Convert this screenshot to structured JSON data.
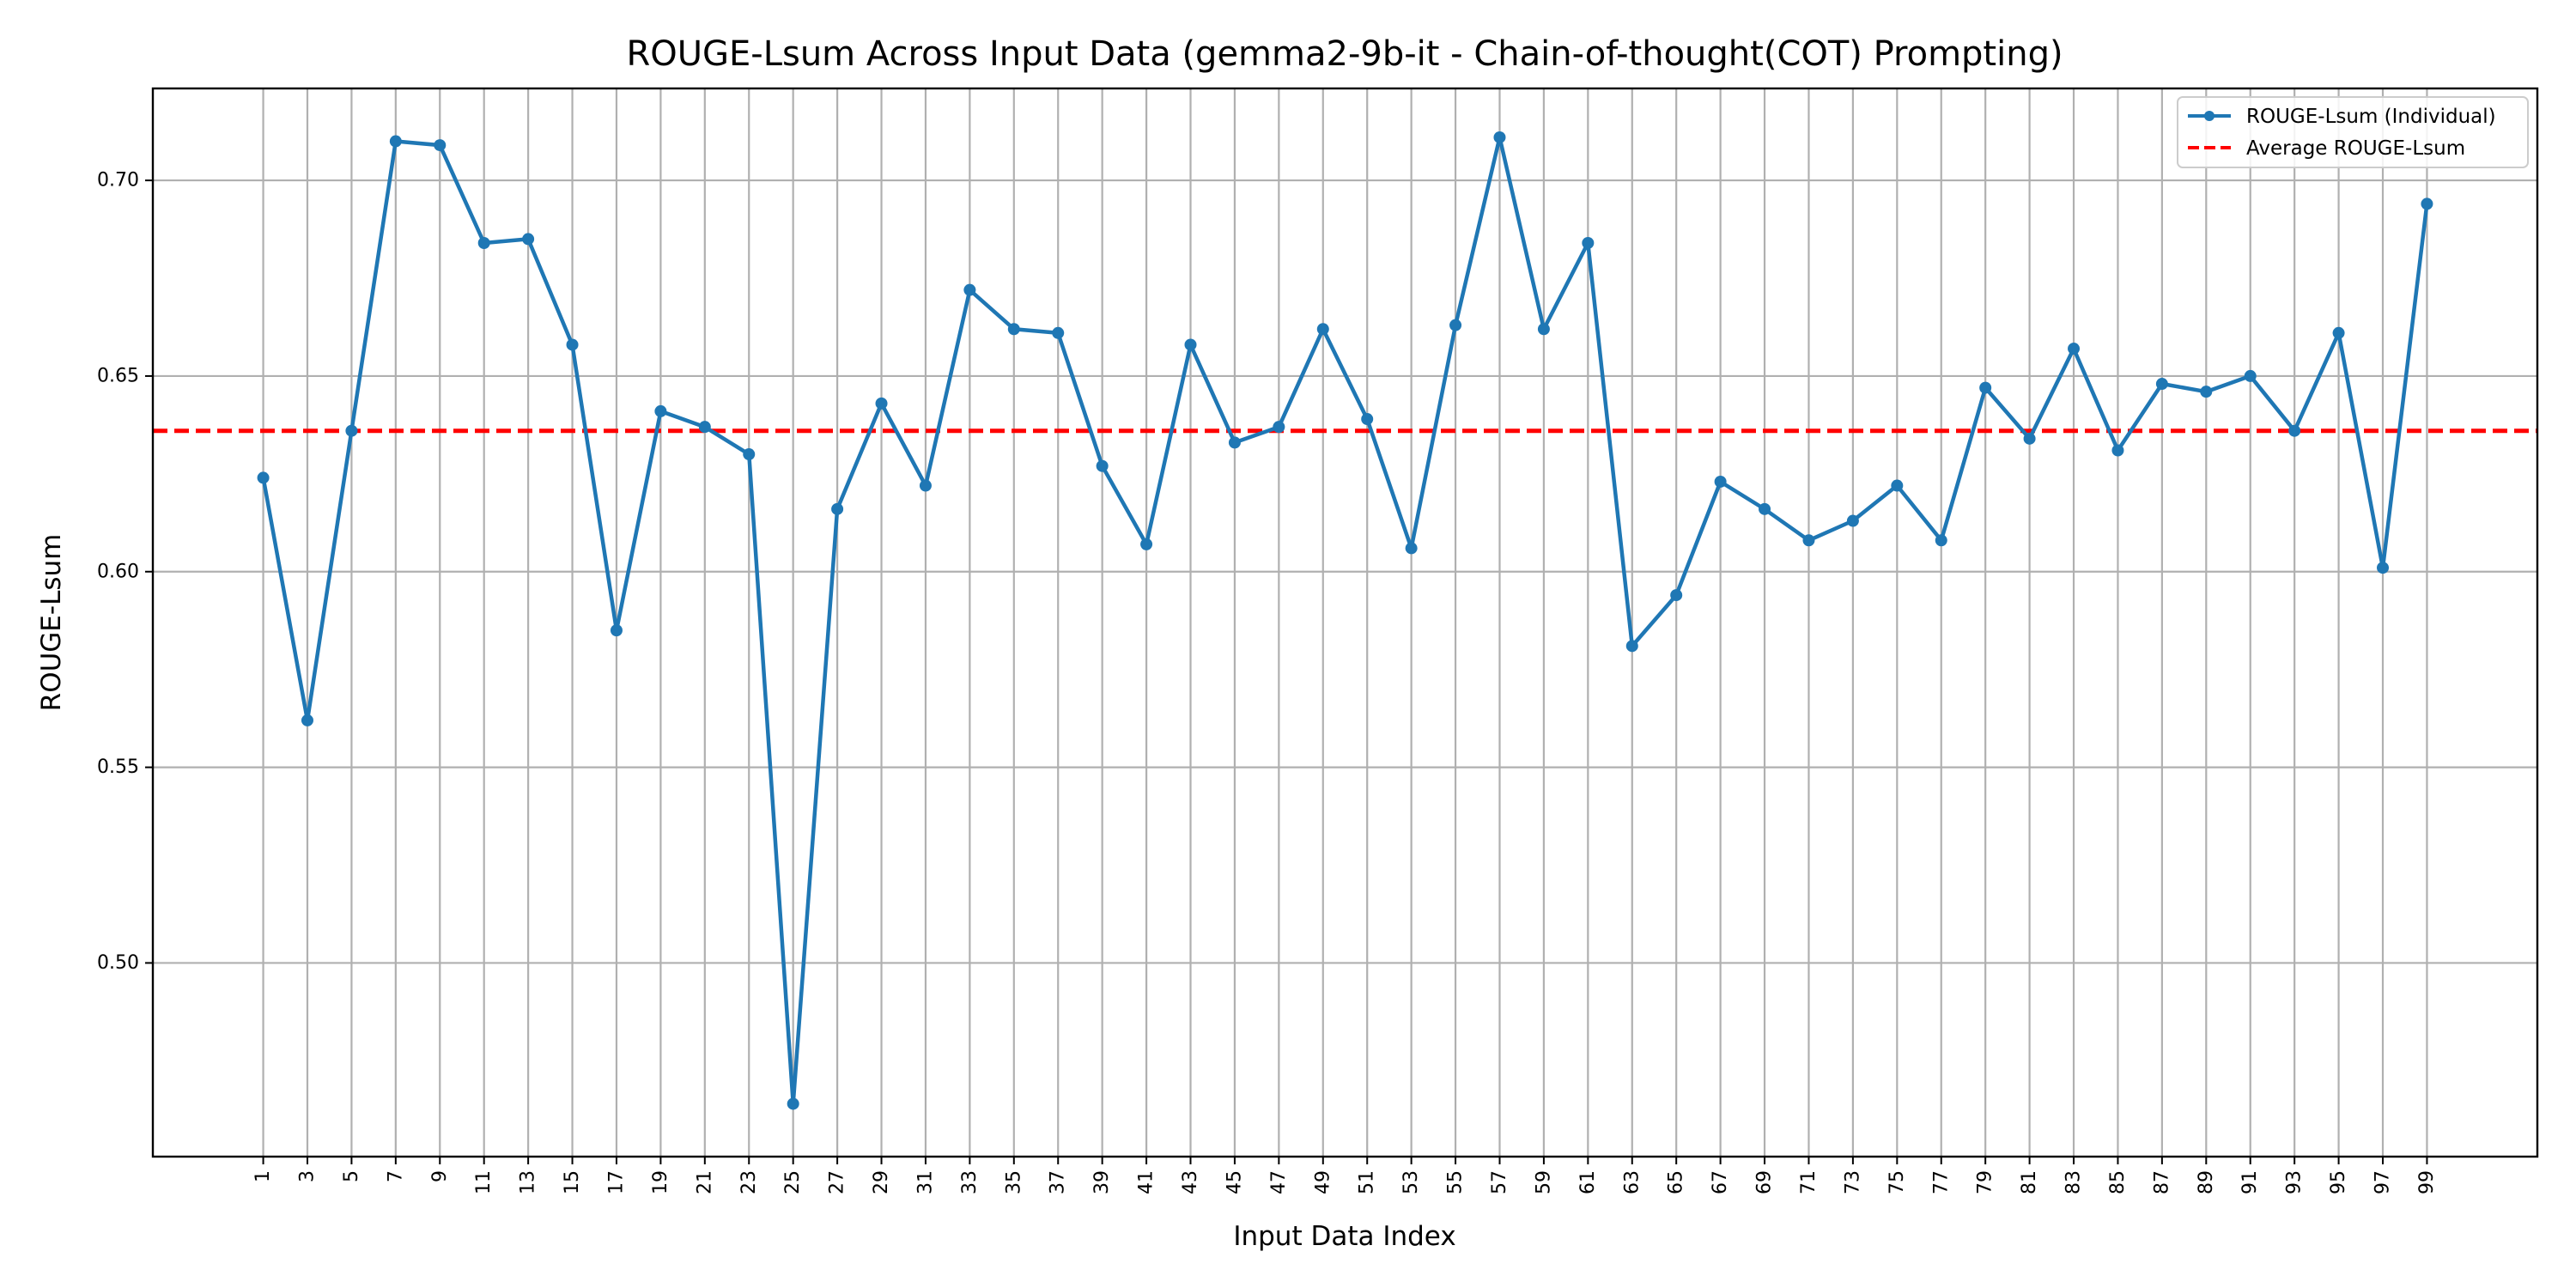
{
  "chart_data": {
    "type": "line",
    "title": "ROUGE-Lsum Across Input Data (gemma2-9b-it - Chain-of-thought(COT) Prompting)",
    "xlabel": "Input Data Index",
    "ylabel": "ROUGE-Lsum",
    "x": [
      1,
      3,
      5,
      7,
      9,
      11,
      13,
      15,
      17,
      19,
      21,
      23,
      25,
      27,
      29,
      31,
      33,
      35,
      37,
      39,
      41,
      43,
      45,
      47,
      49,
      51,
      53,
      55,
      57,
      59,
      61,
      63,
      65,
      67,
      69,
      71,
      73,
      75,
      77,
      79,
      81,
      83,
      85,
      87,
      89,
      91,
      93,
      95,
      97,
      99
    ],
    "xticks": [
      "1",
      "3",
      "5",
      "7",
      "9",
      "11",
      "13",
      "15",
      "17",
      "19",
      "21",
      "23",
      "25",
      "27",
      "29",
      "31",
      "33",
      "35",
      "37",
      "39",
      "41",
      "43",
      "45",
      "47",
      "49",
      "51",
      "53",
      "55",
      "57",
      "59",
      "61",
      "63",
      "65",
      "67",
      "69",
      "71",
      "73",
      "75",
      "77",
      "79",
      "81",
      "83",
      "85",
      "87",
      "89",
      "91",
      "93",
      "95",
      "97",
      "99"
    ],
    "yticks": [
      0.5,
      0.55,
      0.6,
      0.65,
      0.7
    ],
    "ytick_labels": [
      "0.50",
      "0.55",
      "0.60",
      "0.65",
      "0.70"
    ],
    "xlim": [
      -4.0,
      104.0
    ],
    "ylim": [
      0.4505,
      0.7235
    ],
    "grid": true,
    "legend_position": "top-right",
    "series": [
      {
        "name": "ROUGE-Lsum (Individual)",
        "color": "#1f77b4",
        "style": "solid-with-markers",
        "values": [
          0.624,
          0.562,
          0.636,
          0.71,
          0.709,
          0.684,
          0.685,
          0.658,
          0.585,
          0.641,
          0.637,
          0.63,
          0.464,
          0.616,
          0.643,
          0.622,
          0.672,
          0.662,
          0.661,
          0.627,
          0.607,
          0.658,
          0.633,
          0.637,
          0.662,
          0.639,
          0.606,
          0.663,
          0.711,
          0.662,
          0.684,
          0.581,
          0.594,
          0.623,
          0.616,
          0.608,
          0.613,
          0.622,
          0.608,
          0.647,
          0.634,
          0.657,
          0.631,
          0.648,
          0.646,
          0.65,
          0.636,
          0.661,
          0.601,
          0.694
        ]
      },
      {
        "name": "Average ROUGE-Lsum",
        "color": "#ff0000",
        "style": "dashed",
        "value": 0.636
      }
    ]
  }
}
